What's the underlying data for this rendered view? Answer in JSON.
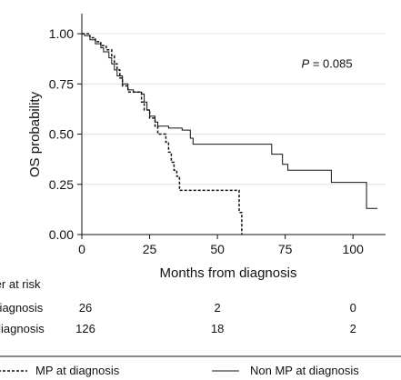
{
  "chart_data": {
    "type": "line",
    "subtype": "kaplan-meier",
    "xlabel": "Months from diagnosis",
    "ylabel": "OS probability",
    "xlim": [
      0,
      112
    ],
    "ylim": [
      0,
      1.1
    ],
    "x_ticks": [
      0,
      25,
      50,
      75,
      100
    ],
    "y_ticks": [
      "0.00",
      "0.25",
      "0.50",
      "0.75",
      "1.00"
    ],
    "grid": "horizontal",
    "annotation": {
      "italic": "P",
      "text": " = 0.085",
      "x": 81,
      "y": 0.83
    },
    "series": [
      {
        "name": "MP at diagnosis",
        "style": "dashed",
        "points": [
          [
            0,
            1.0
          ],
          [
            2,
            1.0
          ],
          [
            3,
            0.98
          ],
          [
            5,
            0.96
          ],
          [
            7,
            0.94
          ],
          [
            9,
            0.92
          ],
          [
            11,
            0.89
          ],
          [
            12,
            0.85
          ],
          [
            13,
            0.82
          ],
          [
            14,
            0.78
          ],
          [
            15,
            0.74
          ],
          [
            17,
            0.71
          ],
          [
            21,
            0.71
          ],
          [
            22,
            0.66
          ],
          [
            23,
            0.62
          ],
          [
            25,
            0.58
          ],
          [
            27,
            0.54
          ],
          [
            28,
            0.5
          ],
          [
            31,
            0.46
          ],
          [
            32,
            0.41
          ],
          [
            33,
            0.36
          ],
          [
            34,
            0.32
          ],
          [
            35,
            0.29
          ],
          [
            36,
            0.22
          ],
          [
            56,
            0.22
          ],
          [
            58,
            0.11
          ],
          [
            59,
            0.0
          ],
          [
            59,
            0.0
          ]
        ]
      },
      {
        "name": "Non MP at diagnosis",
        "style": "solid",
        "points": [
          [
            0,
            1.0
          ],
          [
            1,
            0.99
          ],
          [
            3,
            0.97
          ],
          [
            5,
            0.95
          ],
          [
            7,
            0.93
          ],
          [
            8,
            0.91
          ],
          [
            10,
            0.88
          ],
          [
            11,
            0.85
          ],
          [
            12,
            0.82
          ],
          [
            13,
            0.79
          ],
          [
            15,
            0.75
          ],
          [
            17,
            0.72
          ],
          [
            19,
            0.71
          ],
          [
            22,
            0.7
          ],
          [
            23,
            0.66
          ],
          [
            24,
            0.62
          ],
          [
            25,
            0.59
          ],
          [
            27,
            0.56
          ],
          [
            28,
            0.54
          ],
          [
            32,
            0.53
          ],
          [
            37,
            0.52
          ],
          [
            40,
            0.48
          ],
          [
            41,
            0.45
          ],
          [
            69,
            0.45
          ],
          [
            70,
            0.4
          ],
          [
            74,
            0.35
          ],
          [
            76,
            0.32
          ],
          [
            91,
            0.32
          ],
          [
            92,
            0.26
          ],
          [
            104,
            0.26
          ],
          [
            105,
            0.13
          ],
          [
            109,
            0.13
          ]
        ]
      }
    ],
    "risk_table": {
      "title": "Number at risk",
      "columns_x": [
        0,
        50,
        100
      ],
      "rows": [
        {
          "label": "MP at diagnosis",
          "counts": [
            "26",
            "2",
            "0"
          ]
        },
        {
          "label": "Non MP at diagnosis",
          "counts": [
            "126",
            "18",
            "2"
          ]
        }
      ]
    },
    "legend": {
      "position": "bottom",
      "entries": [
        {
          "label": "MP at diagnosis",
          "style": "dashed"
        },
        {
          "label": "Non MP at diagnosis",
          "style": "solid"
        }
      ]
    }
  }
}
